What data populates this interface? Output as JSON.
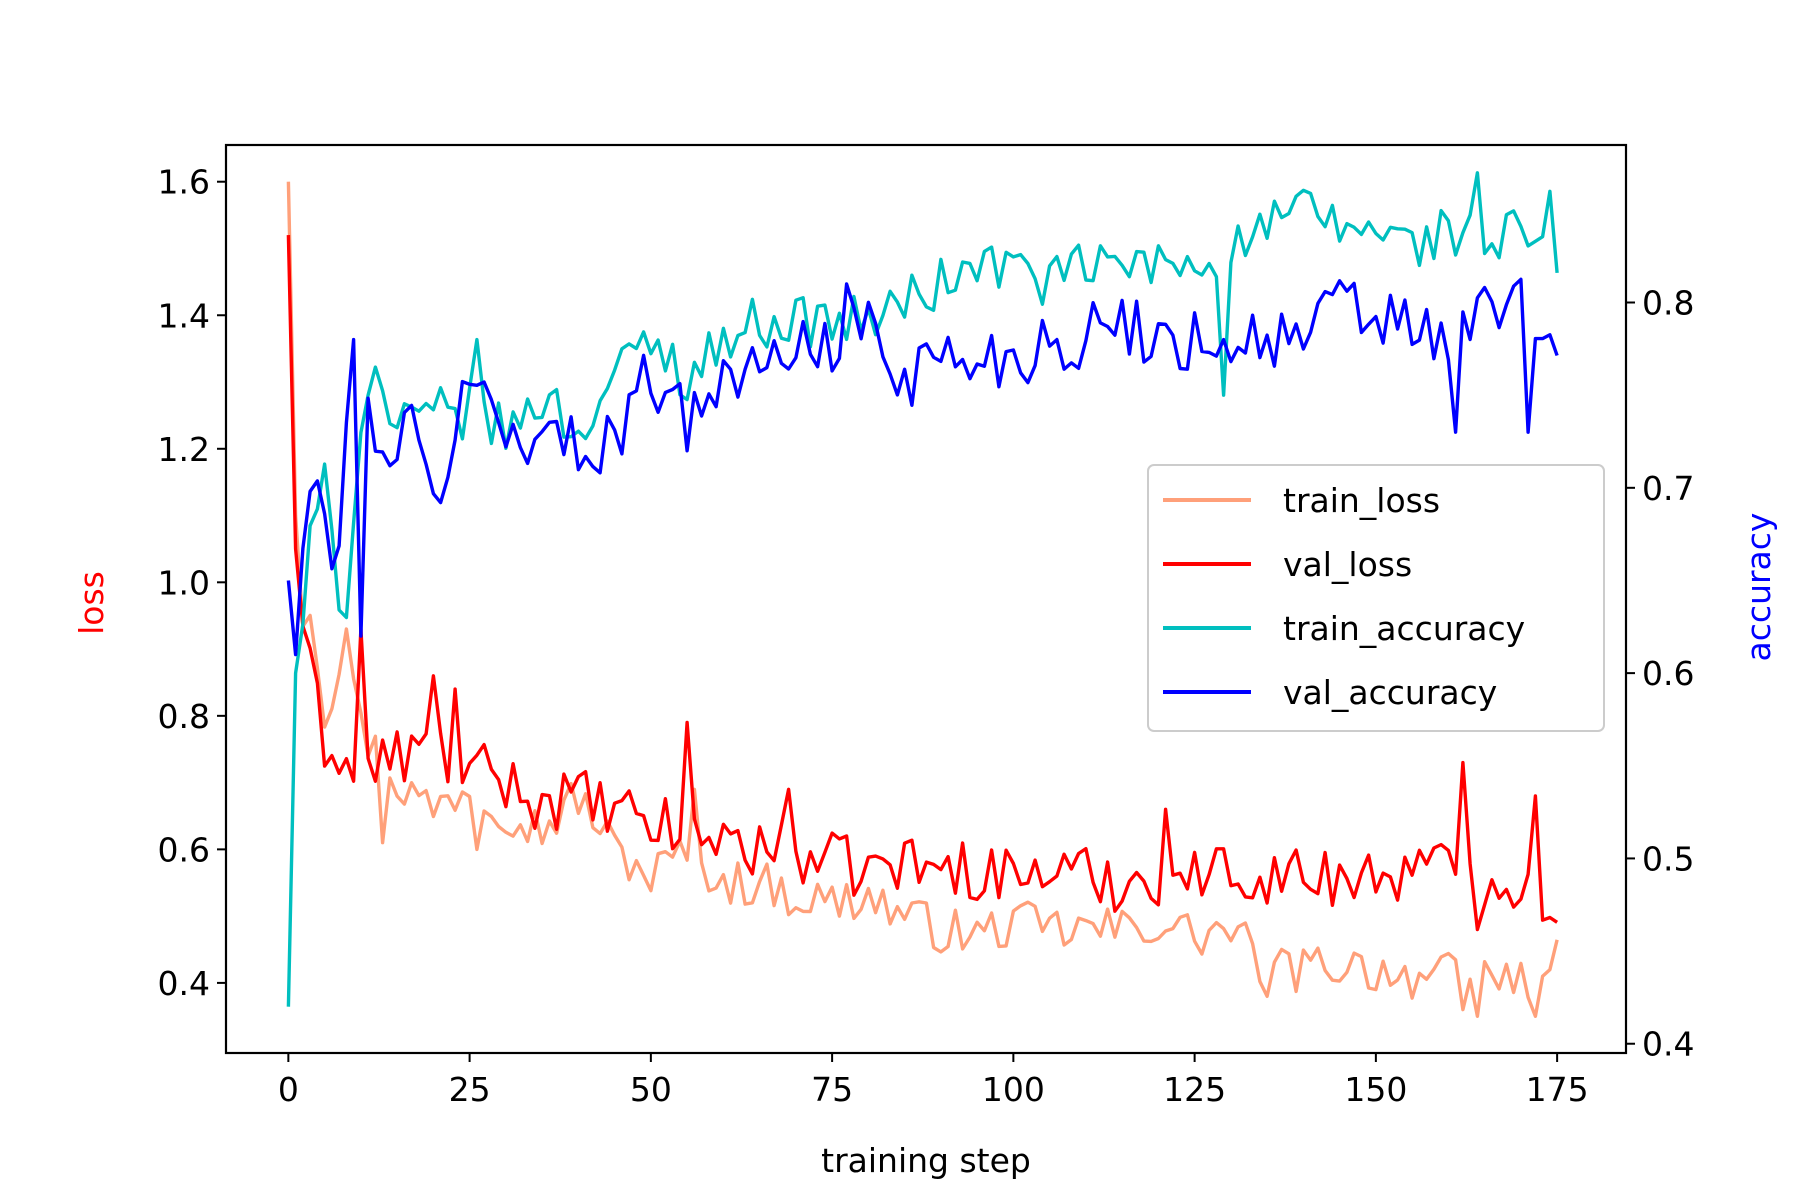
{
  "chart_data": {
    "type": "line",
    "xlabel": "training step",
    "ylabel_left": "loss",
    "ylabel_right": "accuracy",
    "colors": {
      "train_loss": "#FFA07A",
      "val_loss": "#FF0000",
      "train_accuracy": "#00BFBF",
      "val_accuracy": "#0000FF",
      "left_label": "#FF0000",
      "right_label": "#0000FF"
    },
    "xlim": [
      -8.6,
      184.5
    ],
    "ylim_left": [
      0.295,
      1.655
    ],
    "ylim_right": [
      0.395,
      0.885
    ],
    "xticks": [
      0,
      25,
      50,
      75,
      100,
      125,
      150,
      175
    ],
    "yticks_left": [
      0.4,
      0.6,
      0.8,
      1.0,
      1.2,
      1.4,
      1.6
    ],
    "yticks_left_labels": [
      "0.4",
      "0.6",
      "0.8",
      "1.0",
      "1.2",
      "1.4",
      "1.6"
    ],
    "yticks_right": [
      0.4,
      0.5,
      0.6,
      0.7,
      0.8
    ],
    "yticks_right_labels": [
      "0.4",
      "0.5",
      "0.6",
      "0.7",
      "0.8"
    ],
    "legend": {
      "placement": "center-right",
      "entries": [
        "train_loss",
        "val_loss",
        "train_accuracy",
        "val_accuracy"
      ]
    },
    "series": [
      {
        "name": "train_loss",
        "axis": "left",
        "anchors": [
          [
            0,
            1.6
          ],
          [
            1,
            1.1
          ],
          [
            2,
            0.95
          ],
          [
            3,
            0.98
          ],
          [
            5,
            0.8
          ],
          [
            8,
            0.93
          ],
          [
            10,
            0.78
          ],
          [
            15,
            0.7
          ],
          [
            20,
            0.66
          ],
          [
            25,
            0.7
          ],
          [
            30,
            0.66
          ],
          [
            35,
            0.63
          ],
          [
            40,
            0.68
          ],
          [
            45,
            0.6
          ],
          [
            50,
            0.56
          ],
          [
            55,
            0.6
          ],
          [
            60,
            0.55
          ],
          [
            65,
            0.55
          ],
          [
            70,
            0.53
          ],
          [
            75,
            0.52
          ],
          [
            80,
            0.53
          ],
          [
            85,
            0.5
          ],
          [
            90,
            0.48
          ],
          [
            95,
            0.47
          ],
          [
            100,
            0.49
          ],
          [
            105,
            0.48
          ],
          [
            110,
            0.48
          ],
          [
            115,
            0.48
          ],
          [
            120,
            0.49
          ],
          [
            125,
            0.47
          ],
          [
            130,
            0.48
          ],
          [
            135,
            0.42
          ],
          [
            140,
            0.42
          ],
          [
            145,
            0.43
          ],
          [
            150,
            0.42
          ],
          [
            155,
            0.41
          ],
          [
            160,
            0.41
          ],
          [
            165,
            0.42
          ],
          [
            170,
            0.4
          ],
          [
            175,
            0.43
          ]
        ],
        "noise": 0.035,
        "spikes": [
          [
            8,
            0.93
          ],
          [
            13,
            0.61
          ],
          [
            26,
            0.6
          ],
          [
            56,
            0.69
          ],
          [
            64,
            0.52
          ],
          [
            135,
            0.38
          ],
          [
            162,
            0.36
          ],
          [
            164,
            0.35
          ],
          [
            172,
            0.35
          ]
        ]
      },
      {
        "name": "val_loss",
        "axis": "left",
        "anchors": [
          [
            0,
            1.52
          ],
          [
            1,
            1.05
          ],
          [
            2,
            0.95
          ],
          [
            3,
            0.86
          ],
          [
            5,
            0.76
          ],
          [
            7,
            0.75
          ],
          [
            9,
            0.7
          ],
          [
            10,
            0.93
          ],
          [
            11,
            0.72
          ],
          [
            15,
            0.74
          ],
          [
            20,
            0.75
          ],
          [
            25,
            0.72
          ],
          [
            30,
            0.7
          ],
          [
            35,
            0.67
          ],
          [
            40,
            0.68
          ],
          [
            45,
            0.65
          ],
          [
            50,
            0.64
          ],
          [
            55,
            0.62
          ],
          [
            60,
            0.62
          ],
          [
            65,
            0.6
          ],
          [
            70,
            0.59
          ],
          [
            75,
            0.58
          ],
          [
            80,
            0.57
          ],
          [
            85,
            0.58
          ],
          [
            90,
            0.57
          ],
          [
            95,
            0.57
          ],
          [
            100,
            0.56
          ],
          [
            105,
            0.57
          ],
          [
            110,
            0.56
          ],
          [
            115,
            0.55
          ],
          [
            120,
            0.56
          ],
          [
            125,
            0.56
          ],
          [
            130,
            0.57
          ],
          [
            135,
            0.56
          ],
          [
            140,
            0.56
          ],
          [
            145,
            0.56
          ],
          [
            150,
            0.56
          ],
          [
            155,
            0.57
          ],
          [
            160,
            0.57
          ],
          [
            165,
            0.56
          ],
          [
            170,
            0.55
          ],
          [
            175,
            0.52
          ]
        ],
        "noise": 0.045,
        "spikes": [
          [
            10,
            0.93
          ],
          [
            20,
            0.86
          ],
          [
            23,
            0.84
          ],
          [
            55,
            0.79
          ],
          [
            69,
            0.69
          ],
          [
            121,
            0.66
          ],
          [
            162,
            0.73
          ],
          [
            164,
            0.48
          ],
          [
            172,
            0.68
          ]
        ]
      },
      {
        "name": "train_accuracy",
        "axis": "right",
        "anchors": [
          [
            0,
            0.42
          ],
          [
            1,
            0.6
          ],
          [
            2,
            0.63
          ],
          [
            3,
            0.67
          ],
          [
            5,
            0.7
          ],
          [
            8,
            0.62
          ],
          [
            10,
            0.74
          ],
          [
            12,
            0.76
          ],
          [
            15,
            0.73
          ],
          [
            20,
            0.74
          ],
          [
            25,
            0.74
          ],
          [
            30,
            0.73
          ],
          [
            35,
            0.75
          ],
          [
            40,
            0.73
          ],
          [
            45,
            0.76
          ],
          [
            50,
            0.78
          ],
          [
            55,
            0.76
          ],
          [
            60,
            0.78
          ],
          [
            65,
            0.79
          ],
          [
            70,
            0.79
          ],
          [
            75,
            0.79
          ],
          [
            80,
            0.79
          ],
          [
            85,
            0.8
          ],
          [
            90,
            0.81
          ],
          [
            95,
            0.82
          ],
          [
            100,
            0.82
          ],
          [
            105,
            0.81
          ],
          [
            110,
            0.82
          ],
          [
            115,
            0.82
          ],
          [
            120,
            0.82
          ],
          [
            125,
            0.82
          ],
          [
            130,
            0.83
          ],
          [
            135,
            0.84
          ],
          [
            140,
            0.85
          ],
          [
            145,
            0.84
          ],
          [
            150,
            0.84
          ],
          [
            155,
            0.83
          ],
          [
            160,
            0.84
          ],
          [
            165,
            0.83
          ],
          [
            170,
            0.84
          ],
          [
            175,
            0.82
          ]
        ],
        "noise": 0.014,
        "spikes": [
          [
            8,
            0.63
          ],
          [
            11,
            0.75
          ],
          [
            26,
            0.78
          ],
          [
            129,
            0.75
          ],
          [
            164,
            0.87
          ],
          [
            174,
            0.86
          ]
        ]
      },
      {
        "name": "val_accuracy",
        "axis": "right",
        "anchors": [
          [
            0,
            0.65
          ],
          [
            1,
            0.61
          ],
          [
            2,
            0.67
          ],
          [
            4,
            0.71
          ],
          [
            6,
            0.64
          ],
          [
            9,
            0.78
          ],
          [
            10,
            0.63
          ],
          [
            11,
            0.74
          ],
          [
            14,
            0.72
          ],
          [
            17,
            0.73
          ],
          [
            20,
            0.69
          ],
          [
            25,
            0.76
          ],
          [
            30,
            0.73
          ],
          [
            35,
            0.73
          ],
          [
            40,
            0.72
          ],
          [
            45,
            0.73
          ],
          [
            50,
            0.76
          ],
          [
            55,
            0.75
          ],
          [
            60,
            0.76
          ],
          [
            65,
            0.76
          ],
          [
            70,
            0.78
          ],
          [
            75,
            0.77
          ],
          [
            80,
            0.79
          ],
          [
            85,
            0.76
          ],
          [
            90,
            0.77
          ],
          [
            95,
            0.77
          ],
          [
            100,
            0.77
          ],
          [
            105,
            0.78
          ],
          [
            110,
            0.78
          ],
          [
            115,
            0.79
          ],
          [
            120,
            0.78
          ],
          [
            125,
            0.78
          ],
          [
            130,
            0.78
          ],
          [
            135,
            0.78
          ],
          [
            140,
            0.78
          ],
          [
            145,
            0.8
          ],
          [
            150,
            0.79
          ],
          [
            155,
            0.79
          ],
          [
            160,
            0.77
          ],
          [
            165,
            0.8
          ],
          [
            170,
            0.8
          ],
          [
            175,
            0.77
          ]
        ],
        "noise": 0.018,
        "spikes": [
          [
            9,
            0.78
          ],
          [
            10,
            0.62
          ],
          [
            55,
            0.72
          ],
          [
            77,
            0.81
          ],
          [
            161,
            0.73
          ],
          [
            171,
            0.73
          ]
        ]
      }
    ]
  }
}
